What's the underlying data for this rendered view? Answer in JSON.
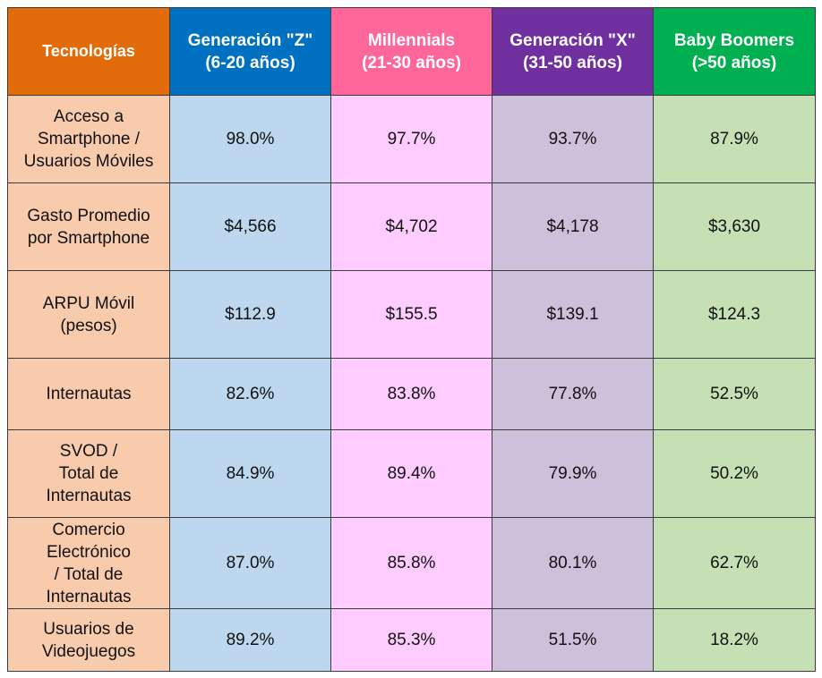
{
  "colors": {
    "header": [
      "#E36C0A",
      "#0070C0",
      "#FF6699",
      "#7030A0",
      "#00B050"
    ],
    "column": [
      "#F8CBAD",
      "#BDD7EE",
      "#FFCCFF",
      "#CCC0DA",
      "#C6E0B4"
    ]
  },
  "chart_data": {
    "type": "table",
    "columns": [
      "Tecnologías",
      "Generación \"Z\"\n(6-20 años)",
      "Millennials\n(21-30 años)",
      "Generación \"X\"\n(31-50 años)",
      "Baby Boomers\n(>50 años)"
    ],
    "rows": [
      {
        "label": "Acceso a\nSmartphone /\nUsuarios Móviles",
        "values": [
          "98.0%",
          "97.7%",
          "93.7%",
          "87.9%"
        ]
      },
      {
        "label": "Gasto Promedio\npor Smartphone",
        "values": [
          "$4,566",
          "$4,702",
          "$4,178",
          "$3,630"
        ]
      },
      {
        "label": "ARPU Móvil\n(pesos)",
        "values": [
          "$112.9",
          "$155.5",
          "$139.1",
          "$124.3"
        ]
      },
      {
        "label": "Internautas",
        "values": [
          "82.6%",
          "83.8%",
          "77.8%",
          "52.5%"
        ]
      },
      {
        "label": "SVOD /\nTotal de\nInternautas",
        "values": [
          "84.9%",
          "89.4%",
          "79.9%",
          "50.2%"
        ]
      },
      {
        "label": "Comercio\nElectrónico\n/ Total de\nInternautas",
        "values": [
          "87.0%",
          "85.8%",
          "80.1%",
          "62.7%"
        ]
      },
      {
        "label": "Usuarios de\nVideojuegos",
        "values": [
          "89.2%",
          "85.3%",
          "51.5%",
          "18.2%"
        ]
      }
    ]
  }
}
